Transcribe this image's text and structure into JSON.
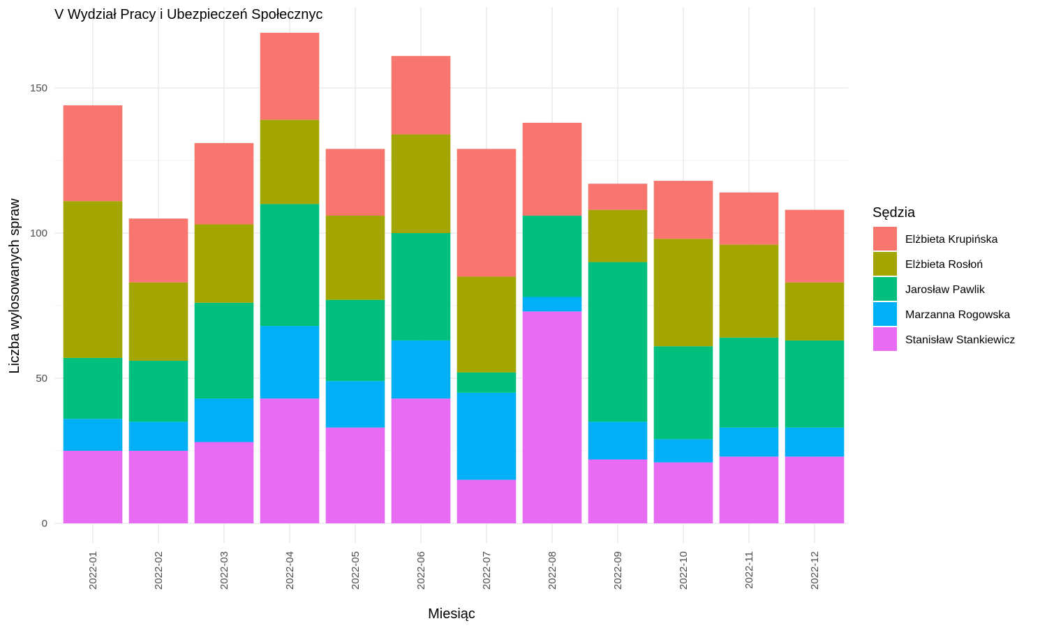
{
  "chart_data": {
    "type": "bar",
    "stacked": true,
    "title": "V Wydział Pracy i Ubezpieczeń Społecznyc",
    "xlabel": "Miesiąc",
    "ylabel": "Liczba wylosowanych spraw",
    "ylim": [
      0,
      170
    ],
    "yticks": [
      "0",
      "50",
      "100",
      "150"
    ],
    "grid": true,
    "legend": {
      "title": "Sędzia",
      "placement": "right"
    },
    "categories": [
      "2022-01",
      "2022-02",
      "2022-03",
      "2022-04",
      "2022-05",
      "2022-06",
      "2022-07",
      "2022-08",
      "2022-09",
      "2022-10",
      "2022-11",
      "2022-12"
    ],
    "series": [
      {
        "name": "Stanisław Stankiewicz",
        "color": "#E76BF3",
        "values": [
          25,
          25,
          28,
          43,
          33,
          43,
          15,
          73,
          22,
          21,
          23,
          23
        ]
      },
      {
        "name": "Marzanna Rogowska",
        "color": "#00B0F6",
        "values": [
          11,
          10,
          15,
          25,
          16,
          20,
          30,
          5,
          13,
          8,
          10,
          10
        ]
      },
      {
        "name": "Jarosław Pawlik",
        "color": "#00BF7D",
        "values": [
          21,
          21,
          33,
          42,
          28,
          37,
          7,
          28,
          55,
          32,
          31,
          30
        ]
      },
      {
        "name": "Elżbieta Rosłoń",
        "color": "#A3A500",
        "values": [
          54,
          27,
          27,
          29,
          29,
          34,
          33,
          0,
          18,
          37,
          32,
          20
        ]
      },
      {
        "name": "Elżbieta Krupińska",
        "color": "#F8766D",
        "values": [
          33,
          22,
          28,
          30,
          23,
          27,
          44,
          32,
          9,
          20,
          18,
          25
        ]
      }
    ],
    "legend_order": [
      "Elżbieta Krupińska",
      "Elżbieta Rosłoń",
      "Jarosław Pawlik",
      "Marzanna Rogowska",
      "Stanisław Stankiewicz"
    ]
  }
}
